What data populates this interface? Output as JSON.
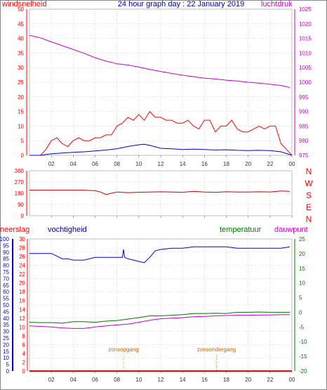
{
  "page": {
    "title": "24 hour graph day : 22 January 2019"
  },
  "colors": {
    "red": "#ff0000",
    "blue": "#0000cc",
    "magenta": "#cc00cc",
    "green": "#007700",
    "orange": "#cc6600",
    "grid": "#bbbbbb",
    "axis_blue": "#0000ff",
    "axis_green": "#007700",
    "axis_red": "#ff0000"
  },
  "hour_labels": [
    "02",
    "04",
    "06",
    "08",
    "10",
    "12",
    "14",
    "16",
    "18",
    "20",
    "22",
    "00"
  ],
  "chart_data": [
    {
      "type": "line",
      "name": "wind-pressure",
      "left_label": "windsnelheid",
      "right_label": "luchtdruk",
      "left_ticks": [
        0,
        5,
        10,
        15,
        20,
        25,
        30,
        35,
        40,
        45,
        50
      ],
      "right_ticks": [
        975,
        980,
        985,
        990,
        995,
        1000,
        1005,
        1010,
        1015,
        1020,
        1025
      ],
      "xlim": [
        0,
        24
      ],
      "ylim_left": [
        0,
        50
      ],
      "ylim_right": [
        975,
        1025
      ],
      "series": [
        {
          "name": "luchtdruk",
          "axis": "right",
          "color": "#cc00cc",
          "x": [
            0,
            1,
            2,
            3,
            4,
            5,
            6,
            7,
            7.5,
            8,
            9,
            10,
            11,
            12,
            13,
            14,
            15,
            16,
            17,
            18,
            19,
            20,
            21,
            22,
            23,
            23.8
          ],
          "y": [
            1016,
            1015.2,
            1013.8,
            1012.5,
            1011.2,
            1009.9,
            1008.4,
            1007.2,
            1006.8,
            1006.3,
            1005.9,
            1005.2,
            1004.4,
            1003.7,
            1003.0,
            1002.4,
            1001.9,
            1001.4,
            1001.1,
            1000.7,
            1000.4,
            1000.0,
            999.7,
            999.3,
            998.9,
            998.2
          ]
        },
        {
          "name": "windsnelheid (gust)",
          "axis": "left",
          "color": "#ff0000",
          "x": [
            0,
            1,
            1.5,
            2,
            2.5,
            3,
            3.5,
            4,
            4.5,
            5,
            5.5,
            6,
            6.5,
            7,
            7.5,
            8,
            8.5,
            9,
            9.5,
            10,
            10.5,
            11,
            11.5,
            12,
            12.5,
            13,
            13.5,
            14,
            14.5,
            15,
            15.5,
            16,
            16.5,
            17,
            17.5,
            18,
            18.5,
            19,
            19.5,
            20,
            20.5,
            21,
            21.5,
            22,
            22.5,
            23,
            23.5,
            24
          ],
          "y": [
            0,
            0,
            2,
            5,
            6,
            4,
            3,
            5,
            6,
            5,
            5,
            6,
            6,
            7,
            7,
            10,
            11,
            13,
            12,
            14,
            12,
            15,
            13,
            13,
            12,
            12,
            11,
            11,
            12,
            10,
            9,
            12,
            12,
            8,
            10,
            10,
            12,
            9,
            8,
            8,
            9,
            10,
            9,
            10,
            10,
            4,
            2,
            0
          ]
        },
        {
          "name": "windsnelheid (avg)",
          "axis": "left",
          "color": "#0000cc",
          "x": [
            0,
            1,
            2,
            3,
            4,
            5,
            6,
            7,
            8,
            9,
            10,
            10.5,
            11,
            11.5,
            12,
            13,
            14,
            15,
            16,
            17,
            18,
            19,
            20,
            21,
            22,
            23,
            24
          ],
          "y": [
            0,
            0,
            0.5,
            0.8,
            1,
            1.2,
            1.5,
            1.8,
            2.2,
            3,
            3.6,
            3.8,
            3.4,
            2.9,
            2.4,
            2.2,
            2,
            2.1,
            2,
            1.8,
            1.9,
            1.7,
            1.6,
            1.7,
            1.6,
            1.2,
            0
          ]
        }
      ]
    },
    {
      "type": "line",
      "name": "wind-direction",
      "left_ticks": [
        0,
        90,
        180,
        270,
        360
      ],
      "right_labels": [
        "N",
        "W",
        "S",
        "E",
        "N"
      ],
      "xlim": [
        0,
        24
      ],
      "ylim": [
        0,
        360
      ],
      "series": [
        {
          "name": "windrichting",
          "color": "#cc0000",
          "x": [
            0,
            1,
            2,
            3,
            4,
            5,
            6,
            6.5,
            7,
            7.5,
            8,
            9,
            10,
            11,
            12,
            13,
            14,
            15,
            16,
            17,
            18,
            19,
            20,
            21,
            22,
            23,
            23.8
          ],
          "y": [
            205,
            205,
            205,
            205,
            205,
            205,
            200,
            190,
            170,
            180,
            190,
            185,
            188,
            190,
            192,
            190,
            188,
            195,
            190,
            188,
            192,
            190,
            190,
            192,
            190,
            198,
            195
          ]
        }
      ]
    },
    {
      "type": "line",
      "name": "climate",
      "labels": {
        "neerslag": "neerslag",
        "vochtigheid": "vochtigheid",
        "temperatuur": "temperatuur",
        "dauwpunt": "dauwpunt"
      },
      "neerslag_ticks": [
        0,
        5,
        10,
        15,
        20,
        25,
        30,
        35,
        40,
        45,
        50,
        55,
        60,
        65,
        70,
        75,
        80,
        85,
        90,
        95,
        100
      ],
      "vochtigheid_ticks": [
        0,
        2,
        4,
        6,
        8,
        10,
        12,
        14,
        16,
        18,
        20,
        22,
        24,
        26,
        28,
        30
      ],
      "temperature_ticks": [
        -20,
        -15,
        -10,
        -5,
        0,
        5,
        10,
        15,
        20,
        25
      ],
      "xlim": [
        0,
        24
      ],
      "ylim_humidity": [
        0,
        100
      ],
      "ylim_temperature": [
        -20,
        25
      ],
      "annotations": {
        "sunrise": "zonsopgang",
        "sunset": "zonsondergang",
        "sunrise_hour": 8.6,
        "sunset_hour": 17.1
      },
      "series": [
        {
          "name": "vochtigheid",
          "axis": "humidity",
          "color": "#0000cc",
          "x": [
            0,
            1,
            2,
            2.5,
            3,
            3.5,
            4,
            5,
            6,
            7,
            8,
            8.5,
            8.6,
            8.7,
            9,
            9.5,
            10,
            10.5,
            11,
            11.5,
            12,
            13,
            14,
            15,
            16,
            17,
            18,
            19,
            20,
            21,
            22,
            23,
            23.8
          ],
          "y": [
            89,
            89,
            89,
            87,
            85,
            85,
            84,
            84,
            86,
            86,
            86,
            86,
            92,
            86,
            85,
            84,
            83,
            82,
            86,
            91,
            92,
            93,
            93,
            94,
            94,
            94,
            94,
            93,
            93,
            93,
            93,
            93,
            94
          ]
        },
        {
          "name": "temperatuur",
          "axis": "temperature",
          "color": "#007700",
          "x": [
            0,
            1,
            2,
            3,
            4,
            5,
            6,
            7,
            8,
            9,
            10,
            11,
            12,
            13,
            14,
            15,
            16,
            17,
            18,
            19,
            20,
            21,
            22,
            23,
            23.8
          ],
          "y": [
            -3.4,
            -3.5,
            -3.5,
            -3.7,
            -3.2,
            -3.2,
            -3.4,
            -3.0,
            -2.8,
            -2.3,
            -1.8,
            -1.2,
            -1.2,
            -1.0,
            -0.8,
            -0.4,
            -0.4,
            -0.3,
            -0.4,
            0.0,
            0.0,
            0.1,
            0.0,
            0.0,
            0.0
          ]
        },
        {
          "name": "dauwpunt",
          "axis": "temperature",
          "color": "#cc00cc",
          "x": [
            0,
            1,
            2,
            3,
            4,
            5,
            6,
            7,
            8,
            9,
            10,
            11,
            12,
            13,
            14,
            15,
            16,
            17,
            18,
            19,
            20,
            21,
            22,
            23,
            23.8
          ],
          "y": [
            -4.6,
            -4.8,
            -5.0,
            -5.3,
            -5.5,
            -5.5,
            -5.0,
            -4.6,
            -4.3,
            -4.0,
            -3.4,
            -2.7,
            -2.2,
            -2.0,
            -1.8,
            -1.5,
            -1.4,
            -1.2,
            -1.1,
            -1.0,
            -1.0,
            -0.9,
            -0.9,
            -0.8,
            -0.8
          ]
        },
        {
          "name": "neerslag",
          "axis": "humidity",
          "color": "#ff0000",
          "x": [
            0,
            24
          ],
          "y": [
            0,
            0
          ]
        }
      ]
    }
  ]
}
